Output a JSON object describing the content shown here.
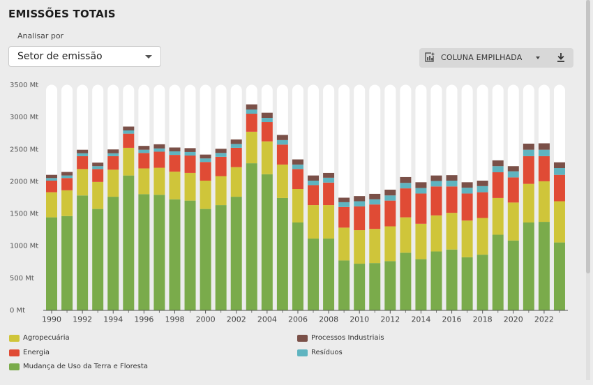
{
  "header": {
    "title": "EMISSÕES TOTAIS",
    "analyze_label": "Analisar por",
    "analyze_value": "Setor de emissão",
    "chart_type_label": "COLUNA EMPILHADA"
  },
  "icons": {
    "chart_type": "stacked-bar-chart-icon",
    "download": "download-icon",
    "select_caret": "chevron-down-icon"
  },
  "chart_data": {
    "type": "bar",
    "stacked": true,
    "unit": "Mt",
    "ylim": [
      0,
      3500
    ],
    "yticks": [
      "0 Mt",
      "500 Mt",
      "1000 Mt",
      "1500 Mt",
      "2000 Mt",
      "2500 Mt",
      "3000 Mt",
      "3500 Mt"
    ],
    "ytick_values": [
      0,
      500,
      1000,
      1500,
      2000,
      2500,
      3000,
      3500
    ],
    "x_tick_labels": [
      "1990",
      "1992",
      "1994",
      "1996",
      "1998",
      "2000",
      "2002",
      "2004",
      "2006",
      "2008",
      "2010",
      "2012",
      "2014",
      "2016",
      "2018",
      "2020",
      "2022"
    ],
    "categories": [
      "1990",
      "1991",
      "1992",
      "1993",
      "1994",
      "1995",
      "1996",
      "1997",
      "1998",
      "1999",
      "2000",
      "2001",
      "2002",
      "2003",
      "2004",
      "2005",
      "2006",
      "2007",
      "2008",
      "2009",
      "2010",
      "2011",
      "2012",
      "2013",
      "2014",
      "2015",
      "2016",
      "2017",
      "2018",
      "2019",
      "2020",
      "2021",
      "2022",
      "2023"
    ],
    "grid": false,
    "legend_position": "bottom",
    "series": [
      {
        "name": "Mudança de Uso da Terra e Floresta",
        "color": "#7aab4b",
        "values": [
          1440,
          1460,
          1780,
          1570,
          1760,
          2090,
          1800,
          1790,
          1720,
          1700,
          1570,
          1630,
          1760,
          2280,
          2110,
          1740,
          1360,
          1110,
          1110,
          770,
          720,
          730,
          760,
          890,
          790,
          910,
          940,
          820,
          860,
          1170,
          1080,
          1360,
          1370,
          1050
        ]
      },
      {
        "name": "Agropecuária",
        "color": "#cfc53a",
        "values": [
          390,
          400,
          410,
          420,
          420,
          430,
          400,
          420,
          430,
          430,
          440,
          450,
          460,
          490,
          510,
          520,
          520,
          520,
          520,
          510,
          520,
          530,
          540,
          550,
          550,
          560,
          570,
          570,
          570,
          570,
          590,
          600,
          630,
          640
        ]
      },
      {
        "name": "Energia",
        "color": "#e04b35",
        "values": [
          180,
          190,
          200,
          200,
          210,
          220,
          240,
          250,
          260,
          270,
          290,
          300,
          300,
          280,
          300,
          310,
          310,
          310,
          350,
          320,
          370,
          380,
          400,
          450,
          470,
          450,
          410,
          420,
          400,
          400,
          390,
          430,
          390,
          410
        ]
      },
      {
        "name": "Resíduos",
        "color": "#5fb4c0",
        "values": [
          40,
          40,
          45,
          45,
          45,
          50,
          50,
          50,
          55,
          55,
          55,
          60,
          60,
          65,
          65,
          70,
          70,
          70,
          75,
          75,
          80,
          80,
          80,
          85,
          85,
          85,
          90,
          90,
          95,
          95,
          95,
          100,
          100,
          105
        ]
      },
      {
        "name": "Processos Industriais",
        "color": "#7a5048",
        "values": [
          50,
          55,
          55,
          55,
          60,
          60,
          60,
          65,
          60,
          60,
          60,
          65,
          70,
          80,
          80,
          80,
          80,
          80,
          75,
          70,
          80,
          85,
          90,
          90,
          90,
          85,
          85,
          85,
          85,
          90,
          80,
          95,
          100,
          90
        ]
      }
    ],
    "legend_order": [
      "Agropecuária",
      "Processos Industriais",
      "Energia",
      "Resíduos",
      "Mudança de Uso da Terra e Floresta"
    ]
  },
  "legend": {
    "items": [
      {
        "label": "Agropecuária",
        "color": "#cfc53a"
      },
      {
        "label": "Energia",
        "color": "#e04b35"
      },
      {
        "label": "Mudança de Uso da Terra e Floresta",
        "color": "#7aab4b"
      },
      {
        "label": "Processos Industriais",
        "color": "#7a5048"
      },
      {
        "label": "Resíduos",
        "color": "#5fb4c0"
      }
    ]
  }
}
